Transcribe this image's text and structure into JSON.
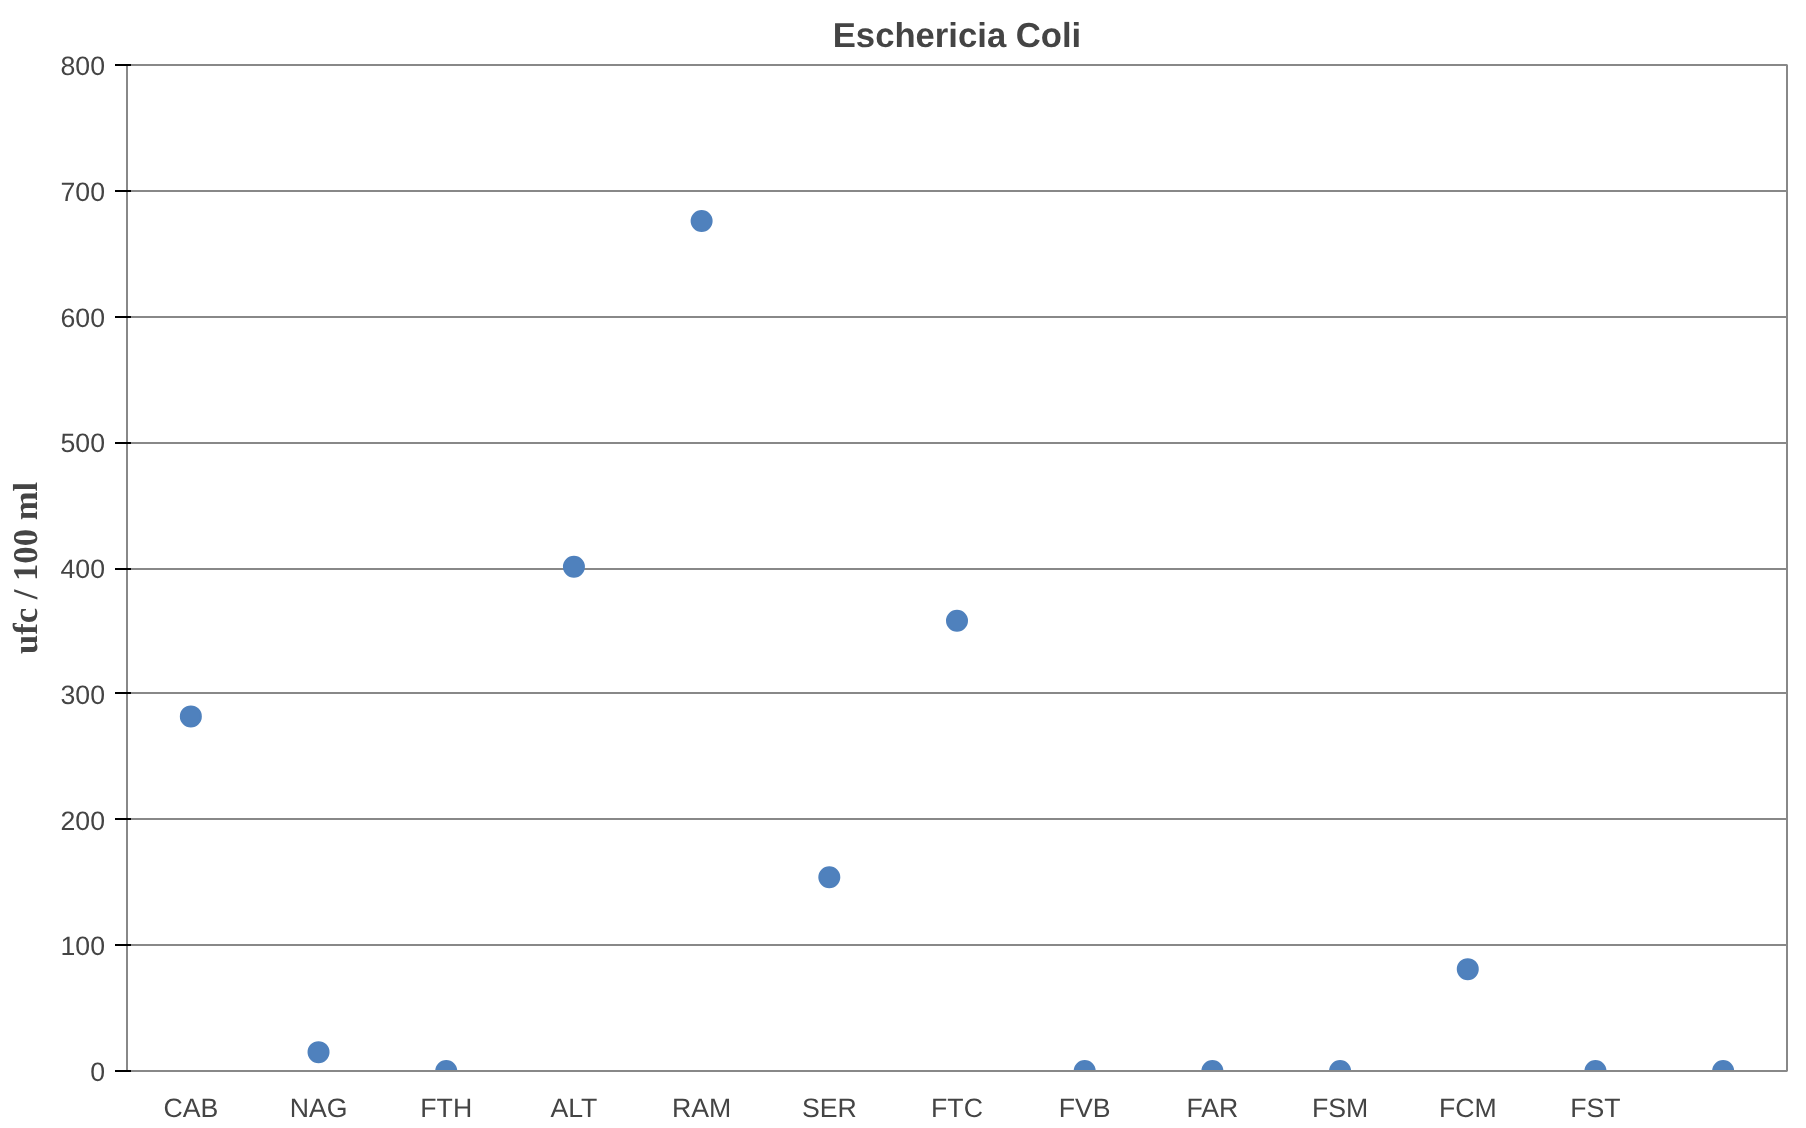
{
  "chart_data": {
    "type": "scatter",
    "title": "Eschericia Coli",
    "ylabel": "ufc / 100 ml",
    "categories": [
      "CAB",
      "NAG",
      "FTH",
      "ALT",
      "RAM",
      "SER",
      "FTC",
      "FVB",
      "FAR",
      "FSM",
      "FCM",
      "FST",
      null
    ],
    "series": [
      {
        "color": "#4f81bd",
        "values": [
          282,
          15,
          0,
          401,
          676,
          154,
          358,
          0,
          0,
          0,
          81,
          0,
          0
        ]
      }
    ],
    "ylim": [
      0,
      800
    ],
    "yticks": [
      0,
      100,
      200,
      300,
      400,
      500,
      600,
      700,
      800
    ],
    "grid": "y",
    "marker": "circle"
  }
}
